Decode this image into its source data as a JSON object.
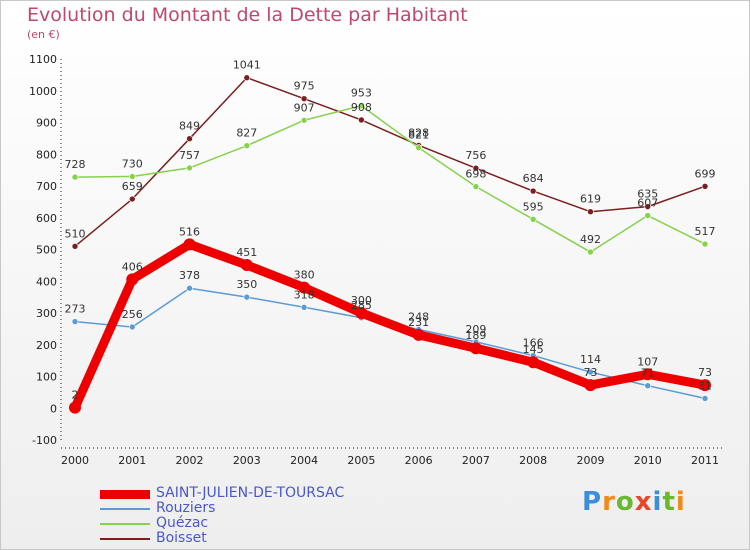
{
  "title": "Evolution du Montant de la Dette par Habitant",
  "subtitle": "(en €)",
  "logo": {
    "text": "Proxiti",
    "colors": [
      "#3a8fd8",
      "#f08a1c",
      "#6ab82e",
      "#e8462a",
      "#3a8fd8",
      "#6ab82e",
      "#f08a1c"
    ]
  },
  "chart_data": {
    "type": "line",
    "title": "Evolution du Montant de la Dette par Habitant",
    "subtitle": "(en €)",
    "x": [
      "2000",
      "2001",
      "2002",
      "2003",
      "2004",
      "2005",
      "2006",
      "2007",
      "2008",
      "2009",
      "2010",
      "2011"
    ],
    "ylim": [
      -100,
      1100
    ],
    "yticks": [
      -100,
      0,
      100,
      200,
      300,
      400,
      500,
      600,
      700,
      800,
      900,
      1000,
      1100
    ],
    "grid": false,
    "legend_position": "bottom-left",
    "series": [
      {
        "name": "SAINT-JULIEN-DE-TOURSAC",
        "color": "#ee0000",
        "width": 9,
        "values": [
          2,
          406,
          516,
          451,
          380,
          300,
          231,
          189,
          145,
          73,
          107,
          73
        ]
      },
      {
        "name": "Rouziers",
        "color": "#5b9bd5",
        "width": 1.5,
        "values": [
          273,
          256,
          378,
          350,
          318,
          285,
          248,
          209,
          166,
          114,
          71,
          31
        ]
      },
      {
        "name": "Quézac",
        "color": "#86d24b",
        "width": 1.5,
        "values": [
          728,
          730,
          757,
          827,
          907,
          953,
          821,
          698,
          595,
          492,
          607,
          517
        ]
      },
      {
        "name": "Boisset",
        "color": "#7b1e1e",
        "width": 1.5,
        "values": [
          510,
          659,
          849,
          1041,
          975,
          908,
          828,
          756,
          684,
          619,
          635,
          699
        ]
      }
    ]
  }
}
